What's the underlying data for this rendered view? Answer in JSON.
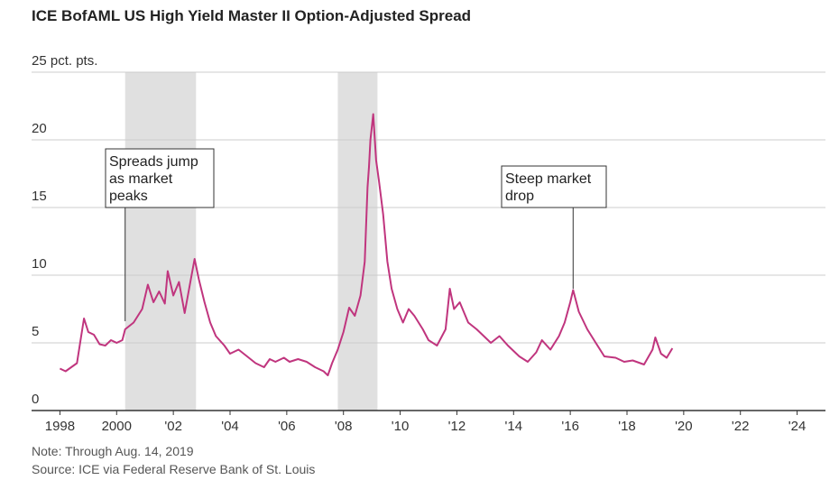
{
  "chart_data": {
    "type": "line",
    "title": "ICE BofAML US High Yield Master II Option-Adjusted Spread",
    "notes": [
      "Note: Through Aug. 14, 2019",
      "Source: ICE via Federal Reserve Bank of St. Louis"
    ],
    "xlim": [
      1997,
      2025
    ],
    "ylim": [
      0,
      25
    ],
    "xticks": [
      1998,
      2000,
      {
        "value": 2002,
        "label": "'02"
      },
      {
        "value": 2004,
        "label": "'04"
      },
      {
        "value": 2006,
        "label": "'06"
      },
      {
        "value": 2008,
        "label": "'08"
      },
      {
        "value": 2010,
        "label": "'10"
      },
      {
        "value": 2012,
        "label": "'12"
      },
      {
        "value": 2014,
        "label": "'14"
      },
      {
        "value": 2016,
        "label": "'16"
      },
      {
        "value": 2018,
        "label": "'18"
      },
      {
        "value": 2020,
        "label": "'20"
      },
      {
        "value": 2022,
        "label": "'22"
      },
      {
        "value": 2024,
        "label": "'24"
      }
    ],
    "yticks": [
      0,
      5,
      10,
      15,
      20,
      {
        "value": 25,
        "label": "25 pct. pts."
      }
    ],
    "grid": true,
    "shaded_periods": [
      [
        2000.3,
        2002.8
      ],
      [
        2007.8,
        2009.2
      ]
    ],
    "shade_color": "#e0e0e0",
    "annotations": [
      {
        "lines": [
          "Spreads jump",
          "as market",
          "peaks"
        ],
        "x": 2000.3,
        "y": 6.6
      },
      {
        "lines": [
          "Steep market",
          "drop"
        ],
        "x": 2016.1,
        "y": 9
      }
    ],
    "series": [
      {
        "color": "#c0357e",
        "x": [
          1998.0,
          1998.2,
          1998.4,
          1998.6,
          1998.75,
          1998.85,
          1999.0,
          1999.2,
          1999.4,
          1999.6,
          1999.8,
          2000.0,
          2000.2,
          2000.3,
          2000.6,
          2000.9,
          2001.1,
          2001.3,
          2001.5,
          2001.7,
          2001.8,
          2002.0,
          2002.2,
          2002.4,
          2002.6,
          2002.75,
          2002.9,
          2003.1,
          2003.3,
          2003.5,
          2003.8,
          2004.0,
          2004.3,
          2004.6,
          2004.9,
          2005.2,
          2005.4,
          2005.6,
          2005.9,
          2006.1,
          2006.4,
          2006.7,
          2007.0,
          2007.3,
          2007.45,
          2007.6,
          2007.8,
          2008.0,
          2008.2,
          2008.4,
          2008.6,
          2008.75,
          2008.85,
          2008.9,
          2008.95,
          2009.05,
          2009.15,
          2009.25,
          2009.4,
          2009.55,
          2009.7,
          2009.9,
          2010.1,
          2010.3,
          2010.5,
          2010.8,
          2011.0,
          2011.3,
          2011.6,
          2011.75,
          2011.9,
          2012.1,
          2012.4,
          2012.7,
          2012.9,
          2013.2,
          2013.5,
          2013.8,
          2014.2,
          2014.5,
          2014.8,
          2015.0,
          2015.3,
          2015.6,
          2015.8,
          2016.0,
          2016.1,
          2016.3,
          2016.6,
          2016.9,
          2017.2,
          2017.6,
          2017.9,
          2018.2,
          2018.6,
          2018.9,
          2019.0,
          2019.2,
          2019.4,
          2019.6
        ],
        "values": [
          3.1,
          2.9,
          3.2,
          3.5,
          5.5,
          6.8,
          5.8,
          5.6,
          4.9,
          4.8,
          5.2,
          5.0,
          5.2,
          6.0,
          6.5,
          7.5,
          9.3,
          8.0,
          8.8,
          7.9,
          10.3,
          8.5,
          9.5,
          7.2,
          9.5,
          11.2,
          9.7,
          8.0,
          6.5,
          5.5,
          4.8,
          4.2,
          4.5,
          4.0,
          3.5,
          3.2,
          3.8,
          3.6,
          3.9,
          3.6,
          3.8,
          3.6,
          3.2,
          2.9,
          2.6,
          3.5,
          4.5,
          5.8,
          7.6,
          7.0,
          8.5,
          11.0,
          16.5,
          18.0,
          20.0,
          21.9,
          18.5,
          17.0,
          14.5,
          11.0,
          9.0,
          7.5,
          6.5,
          7.5,
          7.0,
          6.0,
          5.2,
          4.8,
          6.0,
          9.0,
          7.5,
          8.0,
          6.5,
          6.0,
          5.6,
          5.0,
          5.5,
          4.8,
          4.0,
          3.6,
          4.3,
          5.2,
          4.5,
          5.5,
          6.5,
          8.0,
          8.9,
          7.3,
          6.0,
          5.0,
          4.0,
          3.9,
          3.6,
          3.7,
          3.4,
          4.5,
          5.4,
          4.2,
          3.9,
          4.6
        ]
      }
    ]
  }
}
